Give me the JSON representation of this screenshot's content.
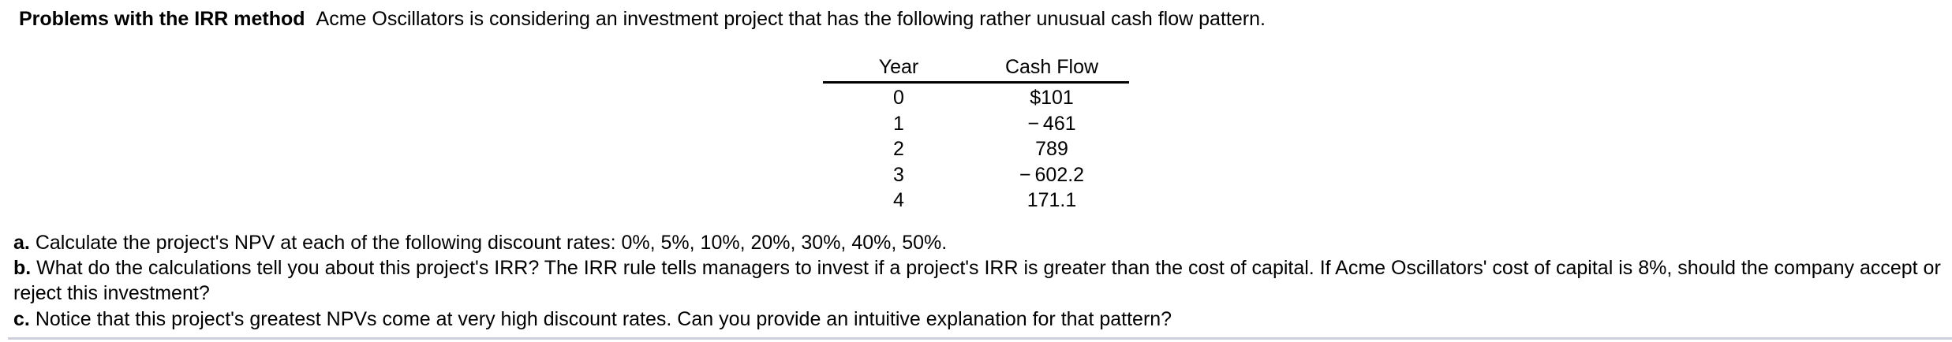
{
  "intro": {
    "title_bold": "Problems with the IRR method",
    "title_rest": "Acme Oscillators is considering an investment project that has the following rather unusual cash flow pattern."
  },
  "table": {
    "headers": [
      "Year",
      "Cash Flow"
    ],
    "rows": [
      {
        "year": "0",
        "cash_flow": "$101"
      },
      {
        "year": "1",
        "cash_flow": "− 461"
      },
      {
        "year": "2",
        "cash_flow": "789"
      },
      {
        "year": "3",
        "cash_flow": "− 602.2"
      },
      {
        "year": "4",
        "cash_flow": "171.1"
      }
    ]
  },
  "questions": [
    {
      "label": "a.",
      "text": "Calculate the project's NPV at each of the following discount rates: 0%, 5%, 10%, 20%, 30%, 40%, 50%."
    },
    {
      "label": "b.",
      "text": "What do the calculations tell you about this project's IRR? The IRR rule tells managers to invest if a project's IRR is greater than the cost of capital. If Acme Oscillators' cost of capital is 8%, should the company accept or reject this investment?"
    },
    {
      "label": "c.",
      "text": "Notice that this project's greatest NPVs come at very high discount rates. Can you provide an intuitive explanation for that pattern?"
    }
  ],
  "colors": {
    "divider": "#ccd0da",
    "text": "#000000",
    "background": "#ffffff"
  }
}
